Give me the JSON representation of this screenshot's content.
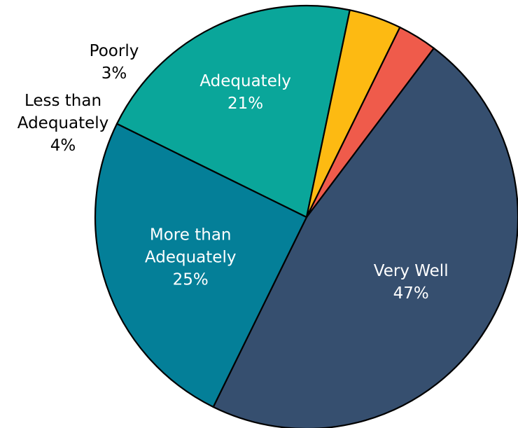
{
  "chart_data": {
    "type": "pie",
    "start_angle_deg": 307,
    "direction": "clockwise",
    "slices": [
      {
        "label_lines": [
          "Very Well"
        ],
        "value_label": "47%",
        "value": 47,
        "color": "#364F6F",
        "label_position": "inside"
      },
      {
        "label_lines": [
          "More than",
          "Adequately"
        ],
        "value_label": "25%",
        "value": 25,
        "color": "#047F98",
        "label_position": "inside"
      },
      {
        "label_lines": [
          "Adequately"
        ],
        "value_label": "21%",
        "value": 21,
        "color": "#0AA69A",
        "label_position": "inside"
      },
      {
        "label_lines": [
          "Less than",
          "Adequately"
        ],
        "value_label": "4%",
        "value": 4,
        "color": "#FDBA12",
        "label_position": "outside"
      },
      {
        "label_lines": [
          "Poorly"
        ],
        "value_label": "3%",
        "value": 3,
        "color": "#EF5B4B",
        "label_position": "outside"
      }
    ],
    "legend": "none"
  }
}
